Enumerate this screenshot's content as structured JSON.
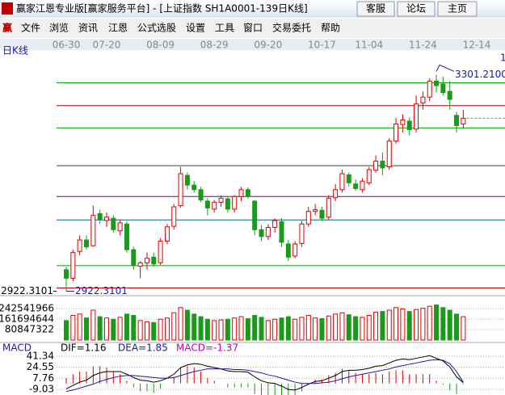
{
  "window": {
    "title": "赢家江恩专业版[赢家服务平台] - [上证指数  SH1A0001-139日K线]",
    "buttons": [
      "客服",
      "论坛",
      "主页"
    ],
    "menu_icon": "赢",
    "menu": [
      "文件",
      "浏览",
      "资讯",
      "江恩",
      "公式选股",
      "设置",
      "工具",
      "窗口",
      "交易委托",
      "帮助"
    ]
  },
  "chart_data": {
    "type": "candlestick",
    "period_label": "日K线",
    "corner_label": "1",
    "up_color": "#e00000",
    "down_color": "#1a9a1a",
    "categories": [
      "06-30",
      null,
      null,
      null,
      null,
      null,
      "07-20",
      null,
      null,
      null,
      null,
      null,
      null,
      null,
      "08-09",
      null,
      null,
      null,
      null,
      null,
      null,
      null,
      "08-29",
      null,
      null,
      null,
      null,
      null,
      null,
      null,
      "09-20",
      null,
      null,
      null,
      null,
      null,
      null,
      null,
      "10-17",
      null,
      null,
      null,
      null,
      null,
      null,
      "11-04",
      null,
      null,
      null,
      null,
      null,
      null,
      null,
      "11-24",
      null,
      null,
      null,
      null,
      null,
      null,
      null,
      "12-14"
    ],
    "candles": [
      [
        2960,
        2965,
        2922.3101,
        2945
      ],
      [
        2945,
        2995,
        2940,
        2990
      ],
      [
        2992,
        3020,
        2985,
        3012
      ],
      [
        3012,
        3020,
        2995,
        3000
      ],
      [
        3002,
        3072,
        3000,
        3055
      ],
      [
        3058,
        3065,
        3040,
        3048
      ],
      [
        3046,
        3060,
        3035,
        3052
      ],
      [
        3050,
        3055,
        3025,
        3030
      ],
      [
        3028,
        3048,
        3020,
        3042
      ],
      [
        3040,
        3044,
        2990,
        2995
      ],
      [
        2995,
        3000,
        2960,
        2968
      ],
      [
        2966,
        2975,
        2945,
        2972
      ],
      [
        2972,
        2990,
        2960,
        2980
      ],
      [
        2982,
        2990,
        2965,
        2970
      ],
      [
        2972,
        3015,
        2968,
        3010
      ],
      [
        3010,
        3040,
        3005,
        3035
      ],
      [
        3036,
        3075,
        3030,
        3070
      ],
      [
        3072,
        3140,
        3068,
        3128
      ],
      [
        3125,
        3130,
        3100,
        3108
      ],
      [
        3108,
        3115,
        3095,
        3100
      ],
      [
        3100,
        3105,
        3078,
        3082
      ],
      [
        3080,
        3085,
        3055,
        3068
      ],
      [
        3066,
        3082,
        3060,
        3078
      ],
      [
        3078,
        3090,
        3070,
        3085
      ],
      [
        3084,
        3088,
        3060,
        3066
      ],
      [
        3066,
        3090,
        3060,
        3088
      ],
      [
        3088,
        3105,
        3080,
        3100
      ],
      [
        3100,
        3104,
        3085,
        3088
      ],
      [
        3080,
        3082,
        3020,
        3030
      ],
      [
        3030,
        3038,
        3010,
        3018
      ],
      [
        3018,
        3040,
        3012,
        3034
      ],
      [
        3034,
        3050,
        3025,
        3046
      ],
      [
        3044,
        3050,
        3000,
        3008
      ],
      [
        3005,
        3012,
        2975,
        2982
      ],
      [
        2984,
        3010,
        2980,
        3005
      ],
      [
        3006,
        3045,
        3000,
        3040
      ],
      [
        3040,
        3070,
        3035,
        3062
      ],
      [
        3062,
        3075,
        3055,
        3065
      ],
      [
        3064,
        3070,
        3045,
        3050
      ],
      [
        3052,
        3090,
        3048,
        3085
      ],
      [
        3086,
        3110,
        3080,
        3100
      ],
      [
        3100,
        3135,
        3095,
        3128
      ],
      [
        3126,
        3130,
        3105,
        3112
      ],
      [
        3110,
        3118,
        3098,
        3102
      ],
      [
        3100,
        3120,
        3095,
        3115
      ],
      [
        3112,
        3140,
        3108,
        3135
      ],
      [
        3134,
        3160,
        3130,
        3150
      ],
      [
        3150,
        3165,
        3125,
        3138
      ],
      [
        3140,
        3190,
        3135,
        3185
      ],
      [
        3185,
        3225,
        3180,
        3215
      ],
      [
        3214,
        3232,
        3200,
        3222
      ],
      [
        3220,
        3226,
        3195,
        3205
      ],
      [
        3206,
        3265,
        3200,
        3250
      ],
      [
        3252,
        3272,
        3240,
        3262
      ],
      [
        3262,
        3295,
        3255,
        3290
      ],
      [
        3290,
        3301.21,
        3270,
        3282
      ],
      [
        3285,
        3298,
        3265,
        3270
      ],
      [
        3272,
        3290,
        3240,
        3258
      ],
      [
        3230,
        3236,
        3200,
        3212
      ],
      [
        3215,
        3240,
        3208,
        3225
      ],
      null,
      null
    ],
    "ylim": [
      2916,
      3340
    ],
    "yticks": [
      {
        "value": 2922.3101,
        "label": "2922.3101"
      }
    ],
    "high_annotation": {
      "value": 3301.21,
      "label": "3301.2100"
    },
    "low_annotation": {
      "value": 2922.3101,
      "label": "2922.3101"
    },
    "levels": [
      {
        "value": 3287,
        "color": "#00a000"
      },
      {
        "value": 3247,
        "color": "#c00000"
      },
      {
        "value": 3208,
        "color": "#00a000"
      },
      {
        "value": 3142,
        "color": "#404040"
      },
      {
        "value": 3088,
        "color": "#800080"
      },
      {
        "value": 3047,
        "color": "#006080"
      },
      {
        "value": 2967,
        "color": "#00a000"
      },
      {
        "value": 2928,
        "color": "#c00000"
      }
    ],
    "volume": {
      "ylim": [
        0,
        317000000
      ],
      "yticks": [
        80847322,
        161694644,
        242541966
      ],
      "values": [
        150000000,
        190000000,
        200000000,
        170000000,
        230000000,
        180000000,
        170000000,
        160000000,
        175000000,
        200000000,
        190000000,
        150000000,
        140000000,
        135000000,
        160000000,
        170000000,
        210000000,
        250000000,
        230000000,
        200000000,
        180000000,
        160000000,
        150000000,
        155000000,
        160000000,
        170000000,
        180000000,
        165000000,
        190000000,
        175000000,
        150000000,
        160000000,
        170000000,
        180000000,
        160000000,
        175000000,
        190000000,
        170000000,
        165000000,
        185000000,
        200000000,
        210000000,
        195000000,
        180000000,
        175000000,
        190000000,
        215000000,
        220000000,
        230000000,
        250000000,
        240000000,
        220000000,
        235000000,
        245000000,
        260000000,
        270000000,
        250000000,
        230000000,
        200000000,
        180000000,
        null,
        null
      ]
    },
    "macd": {
      "title": "MACD",
      "ylim": [
        -15,
        57
      ],
      "yticks": [
        -9.03,
        7.76,
        24.55,
        41.34
      ],
      "series": [
        {
          "label": "DIF=1.16",
          "color": "#000000",
          "values": [
            -8,
            -3,
            2,
            5,
            12,
            16,
            18,
            18,
            18,
            14,
            9,
            5,
            4,
            2,
            4,
            8,
            14,
            24,
            28,
            30,
            29,
            26,
            24,
            22,
            19,
            18,
            18,
            17,
            10,
            4,
            1,
            0,
            -4,
            -9,
            -10,
            -6,
            -1,
            3,
            4,
            8,
            12,
            18,
            20,
            20,
            21,
            23,
            26,
            27,
            31,
            35,
            37,
            36,
            38,
            40,
            42,
            38,
            34,
            25,
            10,
            1.16,
            null,
            null
          ]
        },
        {
          "label": "DEA=1.85",
          "color": "#1a1aa0",
          "values": [
            -12,
            -10,
            -7,
            -4,
            -1,
            3,
            6,
            9,
            11,
            12,
            12,
            11,
            10,
            9,
            8,
            8,
            9,
            12,
            15,
            18,
            20,
            22,
            22,
            22,
            22,
            21,
            21,
            20,
            18,
            16,
            13,
            11,
            8,
            5,
            2,
            0,
            0,
            0,
            1,
            2,
            4,
            7,
            10,
            12,
            14,
            16,
            18,
            20,
            22,
            25,
            27,
            29,
            31,
            33,
            35,
            36,
            35,
            30,
            18,
            1.85,
            null,
            null
          ]
        }
      ],
      "histogram": {
        "label": "MACD=-1.37",
        "color": "#c000c0",
        "values": [
          8,
          14,
          18,
          18,
          26,
          26,
          24,
          18,
          14,
          4,
          -6,
          -12,
          -12,
          -14,
          -8,
          0,
          10,
          24,
          26,
          24,
          18,
          8,
          4,
          0,
          -6,
          -6,
          -6,
          -6,
          -16,
          -24,
          -24,
          -22,
          -24,
          -28,
          -24,
          -12,
          -2,
          6,
          6,
          12,
          16,
          22,
          20,
          16,
          14,
          14,
          16,
          14,
          18,
          20,
          20,
          14,
          14,
          14,
          14,
          4,
          -2,
          -10,
          -16,
          -1.37,
          null,
          null
        ]
      }
    }
  }
}
